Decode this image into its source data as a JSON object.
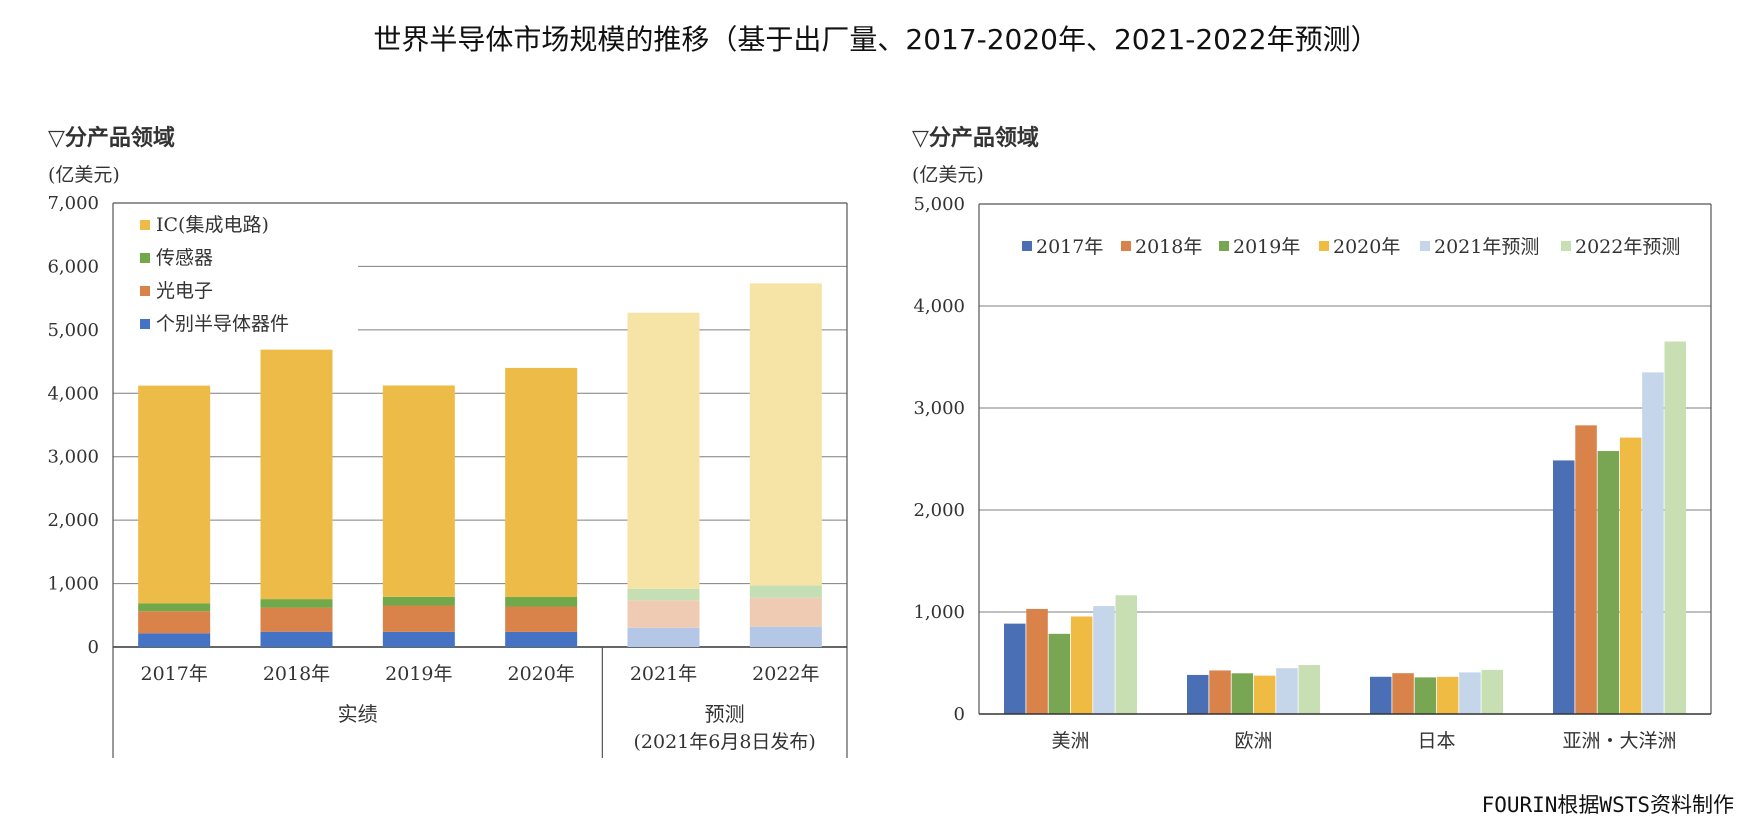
{
  "title": "世界半导体市场规模的推移（基于出厂量、2017-2020年、2021-2022年预测）",
  "credit": "FOURIN根据WSTS资料制作",
  "chart_data": [
    {
      "type": "bar",
      "stacked": true,
      "section_label": "▽分产品领域",
      "unit_label": "(亿美元)",
      "categories": [
        "2017年",
        "2018年",
        "2019年",
        "2020年",
        "2021年",
        "2022年"
      ],
      "ylim": [
        0,
        7000
      ],
      "y_ticks": [
        "0",
        "1,000",
        "2,000",
        "3,000",
        "4,000",
        "5,000",
        "6,000",
        "7,000"
      ],
      "grid": true,
      "legend_position": "top-left",
      "group_labels": [
        {
          "text": "实绩",
          "sub": ""
        },
        {
          "text": "预测",
          "sub": "(2021年6月8日发布)"
        }
      ],
      "forecast_from_index": 4,
      "series": [
        {
          "name": "个别半导体器件",
          "color": "#4472c4",
          "forecast_color": "#b4c7e7",
          "values": [
            216,
            241,
            239,
            238,
            303,
            321
          ]
        },
        {
          "name": "光电子",
          "color": "#d9824a",
          "forecast_color": "#f0cbb3",
          "values": [
            348,
            380,
            415,
            400,
            434,
            455
          ]
        },
        {
          "name": "传感器",
          "color": "#70a84a",
          "forecast_color": "#c5dfb4",
          "values": [
            125,
            134,
            136,
            150,
            180,
            196
          ]
        },
        {
          "name": "IC(集成电路)",
          "color": "#edbb48",
          "forecast_color": "#f6e3a6",
          "values": [
            3432,
            3933,
            3333,
            3612,
            4353,
            4760
          ]
        }
      ]
    },
    {
      "type": "bar",
      "section_label": "▽分产品领域",
      "unit_label": "(亿美元)",
      "categories": [
        "美洲",
        "欧洲",
        "日本",
        "亚洲・大洋洲"
      ],
      "ylim": [
        0,
        5000
      ],
      "y_ticks": [
        "0",
        "1,000",
        "2,000",
        "3,000",
        "4,000",
        "5,000"
      ],
      "grid": true,
      "legend_position": "top",
      "series": [
        {
          "name": "2017年",
          "color": "#4a6fb5",
          "values": [
            886,
            383,
            365,
            2486
          ]
        },
        {
          "name": "2018年",
          "color": "#d9824a",
          "values": [
            1030,
            427,
            400,
            2830
          ]
        },
        {
          "name": "2019年",
          "color": "#79a653",
          "values": [
            786,
            399,
            359,
            2578
          ]
        },
        {
          "name": "2020年",
          "color": "#efbb43",
          "values": [
            956,
            376,
            364,
            2710
          ]
        },
        {
          "name": "2021年预测",
          "color": "#c5d5ea",
          "values": [
            1058,
            449,
            408,
            3349
          ]
        },
        {
          "name": "2022年预测",
          "color": "#c7dfb2",
          "values": [
            1164,
            480,
            433,
            3652
          ]
        }
      ]
    }
  ]
}
